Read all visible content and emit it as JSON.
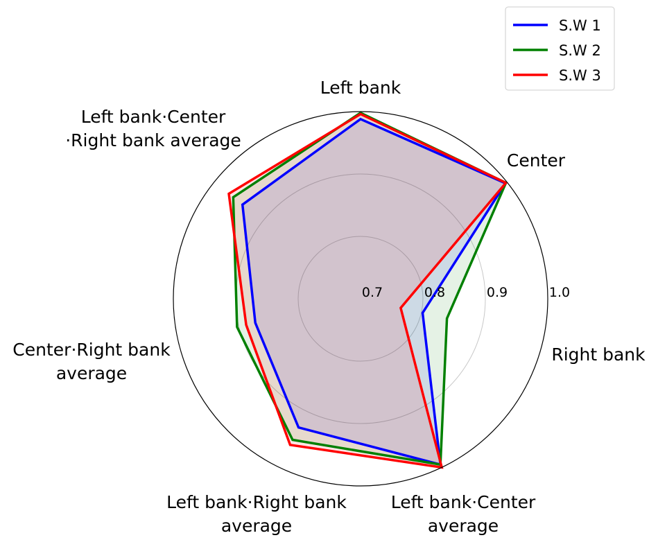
{
  "chart_data": {
    "type": "radar",
    "title": "",
    "categories": [
      [
        "Left bank"
      ],
      [
        "Center"
      ],
      [
        "Right bank"
      ],
      [
        "Left bank·Center",
        "average"
      ],
      [
        "Left bank·Right bank",
        "average"
      ],
      [
        "Center·Right bank",
        "average"
      ],
      [
        "Left bank·Center",
        "·Right bank average"
      ]
    ],
    "rlim": [
      0.7,
      1.0
    ],
    "r_ticks": [
      "0.7",
      "0.8",
      "0.9",
      "1.0"
    ],
    "r_tick_values": [
      0.7,
      0.8,
      0.9,
      1.0
    ],
    "grid": true,
    "legend_position": "top-right",
    "series": [
      {
        "name": "S.W 1",
        "color": "#0000ff",
        "values": [
          0.988,
          0.997,
          0.802,
          0.995,
          0.929,
          0.873,
          0.942
        ]
      },
      {
        "name": "S.W 2",
        "color": "#008000",
        "values": [
          0.998,
          0.998,
          0.842,
          0.995,
          0.951,
          0.903,
          0.961
        ]
      },
      {
        "name": "S.W 3",
        "color": "#ff0000",
        "values": [
          0.996,
          0.998,
          0.766,
          1.0,
          0.96,
          0.888,
          0.97
        ]
      }
    ]
  }
}
